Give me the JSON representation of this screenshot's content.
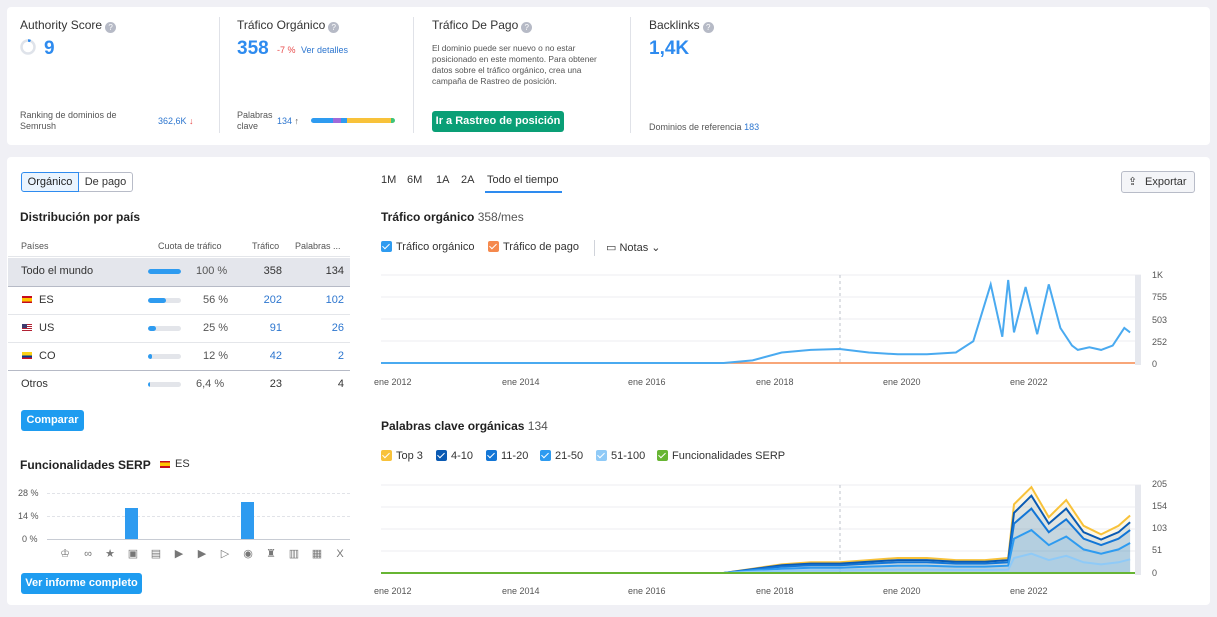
{
  "top": {
    "authority": {
      "label": "Authority Score",
      "value": "9",
      "ranking_label": "Ranking de dominios de Semrush",
      "ranking_value": "362,6K",
      "ranking_arrow": "↓"
    },
    "organic": {
      "label": "Tráfico Orgánico",
      "value": "358",
      "change": "-7 %",
      "link": "Ver detalles",
      "kw_label": "Palabras clave",
      "kw_value": "134",
      "kw_arrow": "↑"
    },
    "paid": {
      "label": "Tráfico De Pago",
      "desc": "El dominio puede ser nuevo o no estar posicionado en este momento. Para obtener datos sobre el tráfico orgánico, crea una campaña de Rastreo de posición.",
      "button": "Ir a Rastreo de posición"
    },
    "backlinks": {
      "label": "Backlinks",
      "value": "1,4K",
      "ref_label": "Dominios de referencia",
      "ref_value": "183"
    }
  },
  "left": {
    "toggle": {
      "organic": "Orgánico",
      "paid": "De pago"
    },
    "dist_title": "Distribución por país",
    "headers": {
      "country": "Países",
      "share": "Cuota de tráfico",
      "traffic": "Tráfico",
      "keywords": "Palabras ..."
    },
    "rows": [
      {
        "name": "Todo el mundo",
        "share": 100,
        "pct": "100 %",
        "traffic": "358",
        "keywords": "134"
      },
      {
        "name": "ES",
        "share": 56,
        "pct": "56 %",
        "traffic": "202",
        "keywords": "102"
      },
      {
        "name": "US",
        "share": 25,
        "pct": "25 %",
        "traffic": "91",
        "keywords": "26"
      },
      {
        "name": "CO",
        "share": 12,
        "pct": "12 %",
        "traffic": "42",
        "keywords": "2"
      },
      {
        "name": "Otros",
        "share": 6.4,
        "pct": "6,4 %",
        "traffic": "23",
        "keywords": "4"
      }
    ],
    "compare_button": "Comparar",
    "serp_title": "Funcionalidades SERP",
    "serp_country": "ES",
    "serp_y": [
      "28 %",
      "14 %",
      "0 %"
    ],
    "full_report_button": "Ver informe completo"
  },
  "right": {
    "ranges": [
      "1M",
      "6M",
      "1A",
      "2A",
      "Todo el tiempo"
    ],
    "export": "Exportar",
    "traffic_title": "Tráfico orgánico",
    "traffic_sub": "358/mes",
    "legend1": {
      "organic": "Tráfico orgánico",
      "paid": "Tráfico de pago",
      "notes": "Notas"
    },
    "kw_title": "Palabras clave orgánicas",
    "kw_sub": "134",
    "legend2": [
      "Top 3",
      "4-10",
      "11-20",
      "21-50",
      "51-100",
      "Funcionalidades SERP"
    ],
    "x_labels": [
      "ene 2012",
      "ene 2014",
      "ene 2016",
      "ene 2018",
      "ene 2020",
      "ene 2022"
    ]
  },
  "colors": {
    "accent": "#2e8bef",
    "green": "#0a9f76",
    "orange": "#f5894d",
    "top3": "#f8c23a",
    "k410": "#0a5ab3",
    "k1120": "#1376d6",
    "k2150": "#2e9bf0",
    "k51100": "#8fcaf7",
    "serp": "#67b533"
  },
  "chart_data": [
    {
      "type": "line",
      "title": "Tráfico orgánico",
      "x": [
        "2011",
        "2012",
        "2013",
        "2014",
        "2015",
        "2016",
        "2017",
        "2017.5",
        "2018",
        "2018.5",
        "2019",
        "2019.5",
        "2020",
        "2020.5",
        "2021",
        "2021.3",
        "2021.6",
        "2021.8",
        "2021.9",
        "2022",
        "2022.2",
        "2022.4",
        "2022.6",
        "2022.8",
        "2023",
        "2023.1",
        "2023.3",
        "2023.5",
        "2023.7",
        "2023.9",
        "2024"
      ],
      "series": [
        {
          "name": "Tráfico orgánico",
          "values": [
            0,
            0,
            0,
            0,
            0,
            0,
            0,
            30,
            120,
            150,
            160,
            120,
            100,
            100,
            120,
            250,
            900,
            300,
            950,
            350,
            870,
            330,
            900,
            400,
            200,
            150,
            180,
            150,
            200,
            400,
            350
          ]
        }
      ],
      "yticks": [
        "0",
        "252",
        "503",
        "755",
        "1K"
      ],
      "ylim": [
        0,
        1007
      ]
    },
    {
      "type": "area",
      "title": "Palabras clave orgánicas",
      "x": [
        "2011",
        "2016",
        "2017",
        "2017.5",
        "2018",
        "2018.5",
        "2019",
        "2019.5",
        "2020",
        "2020.5",
        "2021",
        "2021.5",
        "2021.9",
        "2022",
        "2022.3",
        "2022.6",
        "2022.9",
        "2023.2",
        "2023.5",
        "2023.8",
        "2024"
      ],
      "series": [
        {
          "name": "Top 3",
          "values": [
            0,
            0,
            0,
            10,
            20,
            25,
            25,
            30,
            35,
            35,
            30,
            30,
            35,
            160,
            200,
            130,
            170,
            110,
            90,
            110,
            134
          ]
        },
        {
          "name": "4-10",
          "values": [
            0,
            0,
            0,
            9,
            18,
            22,
            22,
            26,
            30,
            30,
            26,
            26,
            30,
            140,
            180,
            115,
            150,
            95,
            78,
            95,
            118
          ]
        },
        {
          "name": "11-20",
          "values": [
            0,
            0,
            0,
            8,
            15,
            18,
            18,
            22,
            25,
            25,
            22,
            22,
            25,
            115,
            150,
            95,
            125,
            80,
            65,
            80,
            100
          ]
        },
        {
          "name": "21-50",
          "values": [
            0,
            0,
            0,
            6,
            10,
            12,
            12,
            15,
            17,
            17,
            15,
            15,
            17,
            80,
            100,
            65,
            85,
            55,
            45,
            55,
            70
          ]
        },
        {
          "name": "51-100",
          "values": [
            0,
            0,
            0,
            3,
            5,
            6,
            6,
            7,
            8,
            8,
            7,
            7,
            8,
            35,
            45,
            30,
            40,
            25,
            20,
            25,
            32
          ]
        }
      ],
      "yticks": [
        "0",
        "51",
        "103",
        "154",
        "205"
      ],
      "ylim": [
        0,
        205
      ]
    }
  ]
}
